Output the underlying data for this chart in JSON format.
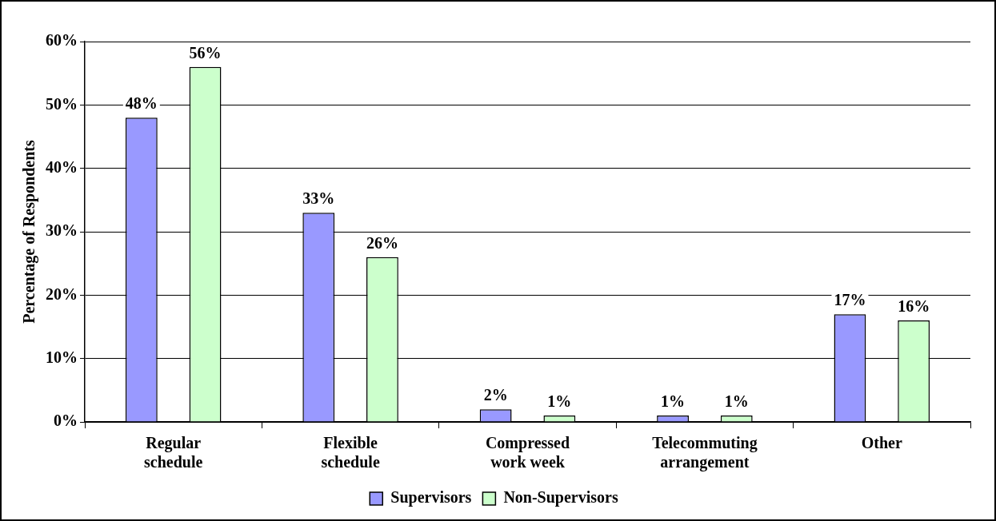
{
  "chart_data": {
    "type": "bar",
    "ylabel": "Percentage of Respondents",
    "categories": [
      "Regular schedule",
      "Flexible schedule",
      "Compressed work week",
      "Telecommuting arrangement",
      "Other"
    ],
    "series": [
      {
        "name": "Supervisors",
        "color": "#9999ff",
        "values": [
          48,
          33,
          2,
          1,
          17
        ],
        "value_labels": [
          "48%",
          "33%",
          "2%",
          "1%",
          "17%"
        ]
      },
      {
        "name": "Non-Supervisors",
        "color": "#ccffcc",
        "values": [
          56,
          26,
          1,
          1,
          16
        ],
        "value_labels": [
          "56%",
          "26%",
          "1%",
          "1%",
          "16%"
        ]
      }
    ],
    "ylim": [
      0,
      60
    ],
    "yticks": [
      {
        "value": 0,
        "label": "0%"
      },
      {
        "value": 10,
        "label": "10%"
      },
      {
        "value": 20,
        "label": "20%"
      },
      {
        "value": 30,
        "label": "30%"
      },
      {
        "value": 40,
        "label": "40%"
      },
      {
        "value": 50,
        "label": "50%"
      },
      {
        "value": 60,
        "label": "60%"
      }
    ],
    "grid": "y",
    "legend": "bottom"
  }
}
